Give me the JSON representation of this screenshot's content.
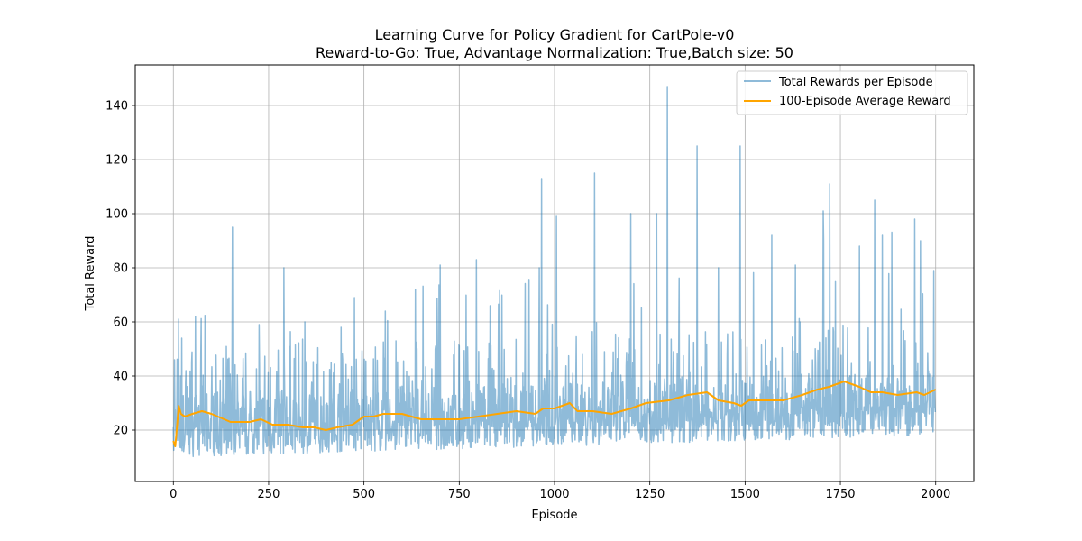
{
  "chart_data": {
    "type": "line",
    "title_line1": "Learning Curve for Policy Gradient for CartPole-v0",
    "title_line2": "Reward-to-Go: True, Advantage Normalization: True,Batch size: 50",
    "xlabel": "Episode",
    "ylabel": "Total Reward",
    "xlim": [
      -100,
      2100
    ],
    "ylim": [
      1,
      155
    ],
    "xticks": [
      0,
      250,
      500,
      750,
      1000,
      1250,
      1500,
      1750,
      2000
    ],
    "yticks": [
      20,
      40,
      60,
      80,
      100,
      120,
      140
    ],
    "grid": true,
    "legend_position": "top-right",
    "episodes": 2000,
    "series": [
      {
        "name": "Total Rewards per Episode",
        "color": "#1f77b4",
        "alpha": 0.5,
        "generation": {
          "method": "noisy-episode-rewards",
          "seed": 7,
          "min": 8,
          "base_trend": [
            [
              0,
              16
            ],
            [
              500,
              18
            ],
            [
              1000,
              20
            ],
            [
              1500,
              22
            ],
            [
              2000,
              24
            ]
          ],
          "peaks": [
            {
              "x": 3,
              "y": 46
            },
            {
              "x": 14,
              "y": 61
            },
            {
              "x": 22,
              "y": 54
            },
            {
              "x": 48,
              "y": 45
            },
            {
              "x": 58,
              "y": 62
            },
            {
              "x": 155,
              "y": 95
            },
            {
              "x": 225,
              "y": 59
            },
            {
              "x": 290,
              "y": 80
            },
            {
              "x": 345,
              "y": 60
            },
            {
              "x": 440,
              "y": 58
            },
            {
              "x": 475,
              "y": 69
            },
            {
              "x": 556,
              "y": 64
            },
            {
              "x": 635,
              "y": 72
            },
            {
              "x": 700,
              "y": 81
            },
            {
              "x": 795,
              "y": 83
            },
            {
              "x": 960,
              "y": 80
            },
            {
              "x": 966,
              "y": 113
            },
            {
              "x": 1005,
              "y": 99
            },
            {
              "x": 1105,
              "y": 115
            },
            {
              "x": 1200,
              "y": 100
            },
            {
              "x": 1268,
              "y": 100
            },
            {
              "x": 1296,
              "y": 147
            },
            {
              "x": 1374,
              "y": 125
            },
            {
              "x": 1430,
              "y": 80
            },
            {
              "x": 1487,
              "y": 125
            },
            {
              "x": 1570,
              "y": 92
            },
            {
              "x": 1632,
              "y": 81
            },
            {
              "x": 1705,
              "y": 101
            },
            {
              "x": 1722,
              "y": 111
            },
            {
              "x": 1800,
              "y": 88
            },
            {
              "x": 1840,
              "y": 105
            },
            {
              "x": 1860,
              "y": 92
            },
            {
              "x": 1945,
              "y": 98
            },
            {
              "x": 1960,
              "y": 90
            },
            {
              "x": 1995,
              "y": 79
            }
          ]
        }
      },
      {
        "name": "100-Episode Average Reward",
        "color": "#ffa500",
        "points": [
          [
            0,
            16
          ],
          [
            5,
            14
          ],
          [
            10,
            22
          ],
          [
            14,
            29
          ],
          [
            20,
            26
          ],
          [
            30,
            25
          ],
          [
            50,
            26
          ],
          [
            75,
            27
          ],
          [
            100,
            26
          ],
          [
            150,
            23
          ],
          [
            200,
            23
          ],
          [
            230,
            24
          ],
          [
            260,
            22
          ],
          [
            300,
            22
          ],
          [
            340,
            21
          ],
          [
            370,
            21
          ],
          [
            400,
            20
          ],
          [
            430,
            21
          ],
          [
            470,
            22
          ],
          [
            500,
            25
          ],
          [
            525,
            25
          ],
          [
            550,
            26
          ],
          [
            600,
            26
          ],
          [
            650,
            24
          ],
          [
            700,
            24
          ],
          [
            750,
            24
          ],
          [
            800,
            25
          ],
          [
            850,
            26
          ],
          [
            900,
            27
          ],
          [
            950,
            26
          ],
          [
            970,
            28
          ],
          [
            1000,
            28
          ],
          [
            1040,
            30
          ],
          [
            1060,
            27
          ],
          [
            1100,
            27
          ],
          [
            1150,
            26
          ],
          [
            1200,
            28
          ],
          [
            1240,
            30
          ],
          [
            1300,
            31
          ],
          [
            1350,
            33
          ],
          [
            1400,
            34
          ],
          [
            1430,
            31
          ],
          [
            1470,
            30
          ],
          [
            1490,
            29
          ],
          [
            1510,
            31
          ],
          [
            1560,
            31
          ],
          [
            1600,
            31
          ],
          [
            1650,
            33
          ],
          [
            1690,
            35
          ],
          [
            1720,
            36
          ],
          [
            1760,
            38
          ],
          [
            1800,
            36
          ],
          [
            1830,
            34
          ],
          [
            1860,
            34
          ],
          [
            1900,
            33
          ],
          [
            1950,
            34
          ],
          [
            1970,
            33
          ],
          [
            2000,
            35
          ]
        ]
      }
    ]
  }
}
